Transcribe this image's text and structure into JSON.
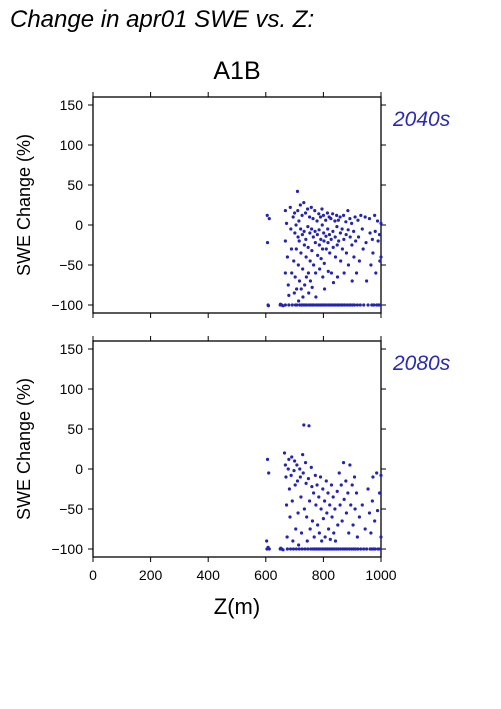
{
  "header": {
    "title": "Change in apr01 SWE vs. Z:"
  },
  "colors": {
    "points": "#2424b0",
    "frame": "#000000",
    "period_label": "#2a2ab4"
  },
  "chart_data": [
    {
      "type": "scatter",
      "title": "A1B",
      "period": "2040s",
      "xlabel": "",
      "ylabel": "SWE Change (%)",
      "xlim": [
        0,
        1000
      ],
      "ylim": [
        -110,
        160
      ],
      "xticks": [],
      "yticks": [
        -100,
        -50,
        0,
        50,
        100,
        150
      ],
      "grid": false,
      "points": [
        [
          605,
          12
        ],
        [
          606,
          -22
        ],
        [
          608,
          -100
        ],
        [
          609,
          -101
        ],
        [
          612,
          8
        ],
        [
          650,
          -100
        ],
        [
          651,
          -99
        ],
        [
          655,
          -100
        ],
        [
          660,
          -101
        ],
        [
          668,
          18
        ],
        [
          668,
          -20
        ],
        [
          668,
          -60
        ],
        [
          668,
          -100
        ],
        [
          672,
          2
        ],
        [
          675,
          -40
        ],
        [
          678,
          -75
        ],
        [
          680,
          -88
        ],
        [
          680,
          -100
        ],
        [
          685,
          22
        ],
        [
          687,
          -5
        ],
        [
          689,
          -30
        ],
        [
          690,
          -60
        ],
        [
          692,
          -100
        ],
        [
          695,
          10
        ],
        [
          697,
          -45
        ],
        [
          699,
          -85
        ],
        [
          700,
          15
        ],
        [
          701,
          -10
        ],
        [
          702,
          -65
        ],
        [
          703,
          -100
        ],
        [
          705,
          0
        ],
        [
          706,
          -30
        ],
        [
          707,
          -80
        ],
        [
          708,
          -100
        ],
        [
          710,
          42
        ],
        [
          711,
          18
        ],
        [
          712,
          -15
        ],
        [
          713,
          -50
        ],
        [
          714,
          -95
        ],
        [
          715,
          5
        ],
        [
          716,
          -20
        ],
        [
          717,
          -70
        ],
        [
          718,
          -100
        ],
        [
          720,
          25
        ],
        [
          721,
          -5
        ],
        [
          722,
          -35
        ],
        [
          723,
          -80
        ],
        [
          724,
          -100
        ],
        [
          726,
          12
        ],
        [
          727,
          -12
        ],
        [
          728,
          -55
        ],
        [
          729,
          -90
        ],
        [
          730,
          -100
        ],
        [
          732,
          28
        ],
        [
          733,
          -8
        ],
        [
          734,
          -25
        ],
        [
          735,
          -75
        ],
        [
          736,
          -100
        ],
        [
          738,
          15
        ],
        [
          739,
          -18
        ],
        [
          740,
          -40
        ],
        [
          741,
          -65
        ],
        [
          742,
          -100
        ],
        [
          745,
          20
        ],
        [
          746,
          -2
        ],
        [
          747,
          -28
        ],
        [
          748,
          -60
        ],
        [
          749,
          -85
        ],
        [
          750,
          -100
        ],
        [
          752,
          10
        ],
        [
          753,
          -10
        ],
        [
          754,
          -45
        ],
        [
          755,
          -70
        ],
        [
          756,
          -100
        ],
        [
          758,
          22
        ],
        [
          759,
          -5
        ],
        [
          760,
          -32
        ],
        [
          761,
          -78
        ],
        [
          762,
          -100
        ],
        [
          764,
          8
        ],
        [
          765,
          -15
        ],
        [
          766,
          -50
        ],
        [
          767,
          -100
        ],
        [
          770,
          18
        ],
        [
          771,
          -8
        ],
        [
          772,
          -22
        ],
        [
          773,
          -60
        ],
        [
          774,
          -90
        ],
        [
          775,
          -100
        ],
        [
          778,
          5
        ],
        [
          779,
          -12
        ],
        [
          780,
          -38
        ],
        [
          781,
          -100
        ],
        [
          784,
          14
        ],
        [
          785,
          -6
        ],
        [
          786,
          -25
        ],
        [
          787,
          -55
        ],
        [
          788,
          -100
        ],
        [
          790,
          10
        ],
        [
          791,
          -18
        ],
        [
          792,
          -42
        ],
        [
          793,
          -100
        ],
        [
          795,
          20
        ],
        [
          796,
          0
        ],
        [
          797,
          -30
        ],
        [
          798,
          -65
        ],
        [
          799,
          -100
        ],
        [
          800,
          12
        ],
        [
          801,
          -10
        ],
        [
          802,
          -20
        ],
        [
          803,
          -48
        ],
        [
          804,
          -80
        ],
        [
          805,
          -100
        ],
        [
          808,
          6
        ],
        [
          809,
          -14
        ],
        [
          810,
          -30
        ],
        [
          811,
          -100
        ],
        [
          814,
          15
        ],
        [
          815,
          -5
        ],
        [
          816,
          -22
        ],
        [
          817,
          -58
        ],
        [
          818,
          -100
        ],
        [
          820,
          10
        ],
        [
          821,
          -12
        ],
        [
          822,
          -35
        ],
        [
          823,
          -100
        ],
        [
          826,
          8
        ],
        [
          827,
          -18
        ],
        [
          828,
          -60
        ],
        [
          830,
          -100
        ],
        [
          832,
          14
        ],
        [
          833,
          -8
        ],
        [
          834,
          -28
        ],
        [
          835,
          -72
        ],
        [
          836,
          -100
        ],
        [
          840,
          5
        ],
        [
          841,
          -15
        ],
        [
          842,
          -40
        ],
        [
          843,
          -100
        ],
        [
          846,
          12
        ],
        [
          847,
          -2
        ],
        [
          848,
          -25
        ],
        [
          849,
          -65
        ],
        [
          850,
          -100
        ],
        [
          852,
          6
        ],
        [
          853,
          -20
        ],
        [
          854,
          -100
        ],
        [
          858,
          10
        ],
        [
          859,
          -10
        ],
        [
          860,
          -45
        ],
        [
          861,
          -100
        ],
        [
          865,
          -5
        ],
        [
          866,
          -30
        ],
        [
          867,
          -100
        ],
        [
          870,
          12
        ],
        [
          871,
          -18
        ],
        [
          872,
          -60
        ],
        [
          874,
          -100
        ],
        [
          878,
          4
        ],
        [
          879,
          -12
        ],
        [
          880,
          -35
        ],
        [
          882,
          -100
        ],
        [
          885,
          18
        ],
        [
          886,
          -6
        ],
        [
          887,
          -50
        ],
        [
          890,
          -100
        ],
        [
          892,
          8
        ],
        [
          893,
          -15
        ],
        [
          895,
          -100
        ],
        [
          898,
          2
        ],
        [
          899,
          -25
        ],
        [
          900,
          -70
        ],
        [
          902,
          -100
        ],
        [
          905,
          -8
        ],
        [
          906,
          -40
        ],
        [
          908,
          -100
        ],
        [
          910,
          10
        ],
        [
          912,
          -20
        ],
        [
          915,
          -60
        ],
        [
          918,
          -100
        ],
        [
          920,
          6
        ],
        [
          922,
          -15
        ],
        [
          925,
          -45
        ],
        [
          928,
          -100
        ],
        [
          930,
          12
        ],
        [
          935,
          -5
        ],
        [
          938,
          -30
        ],
        [
          940,
          -100
        ],
        [
          945,
          10
        ],
        [
          948,
          -22
        ],
        [
          950,
          -70
        ],
        [
          955,
          -100
        ],
        [
          960,
          8
        ],
        [
          962,
          -10
        ],
        [
          965,
          -50
        ],
        [
          968,
          -100
        ],
        [
          970,
          -18
        ],
        [
          972,
          -35
        ],
        [
          975,
          -100
        ],
        [
          978,
          12
        ],
        [
          980,
          -8
        ],
        [
          982,
          -60
        ],
        [
          985,
          -100
        ],
        [
          988,
          5
        ],
        [
          990,
          -20
        ],
        [
          992,
          -100
        ],
        [
          995,
          -12
        ],
        [
          996,
          -45
        ],
        [
          998,
          -100
        ],
        [
          1000,
          2
        ],
        [
          1000,
          -40
        ]
      ]
    },
    {
      "type": "scatter",
      "title": "",
      "period": "2080s",
      "xlabel": "Z(m)",
      "ylabel": "SWE Change (%)",
      "xlim": [
        0,
        1000
      ],
      "ylim": [
        -110,
        160
      ],
      "xticks": [
        0,
        200,
        400,
        600,
        800,
        1000
      ],
      "yticks": [
        -100,
        -50,
        0,
        50,
        100,
        150
      ],
      "grid": false,
      "points": [
        [
          603,
          -90
        ],
        [
          604,
          -100
        ],
        [
          606,
          12
        ],
        [
          608,
          -98
        ],
        [
          610,
          -5
        ],
        [
          612,
          -100
        ],
        [
          650,
          -100
        ],
        [
          652,
          -99
        ],
        [
          655,
          -100
        ],
        [
          660,
          -101
        ],
        [
          665,
          20
        ],
        [
          668,
          5
        ],
        [
          670,
          -10
        ],
        [
          672,
          -45
        ],
        [
          674,
          -85
        ],
        [
          675,
          -100
        ],
        [
          678,
          0
        ],
        [
          680,
          12
        ],
        [
          682,
          -25
        ],
        [
          684,
          -60
        ],
        [
          686,
          -100
        ],
        [
          688,
          -8
        ],
        [
          690,
          15
        ],
        [
          692,
          -40
        ],
        [
          694,
          -90
        ],
        [
          696,
          -100
        ],
        [
          698,
          -2
        ],
        [
          700,
          10
        ],
        [
          702,
          -20
        ],
        [
          704,
          -75
        ],
        [
          706,
          -100
        ],
        [
          708,
          5
        ],
        [
          710,
          -15
        ],
        [
          712,
          -55
        ],
        [
          714,
          -95
        ],
        [
          716,
          -100
        ],
        [
          718,
          0
        ],
        [
          720,
          -10
        ],
        [
          722,
          -35
        ],
        [
          724,
          -80
        ],
        [
          726,
          -100
        ],
        [
          728,
          18
        ],
        [
          730,
          -5
        ],
        [
          732,
          55
        ],
        [
          734,
          -50
        ],
        [
          736,
          -100
        ],
        [
          738,
          8
        ],
        [
          740,
          -18
        ],
        [
          742,
          -60
        ],
        [
          744,
          -90
        ],
        [
          746,
          -100
        ],
        [
          748,
          -12
        ],
        [
          750,
          54
        ],
        [
          752,
          -40
        ],
        [
          754,
          -75
        ],
        [
          756,
          -100
        ],
        [
          758,
          2
        ],
        [
          760,
          -22
        ],
        [
          762,
          -65
        ],
        [
          764,
          -100
        ],
        [
          766,
          -30
        ],
        [
          768,
          -85
        ],
        [
          770,
          -100
        ],
        [
          772,
          -8
        ],
        [
          774,
          -45
        ],
        [
          776,
          -100
        ],
        [
          778,
          -20
        ],
        [
          780,
          -70
        ],
        [
          782,
          -100
        ],
        [
          784,
          -35
        ],
        [
          786,
          -80
        ],
        [
          788,
          -100
        ],
        [
          790,
          -10
        ],
        [
          792,
          -50
        ],
        [
          794,
          -90
        ],
        [
          796,
          -100
        ],
        [
          798,
          -25
        ],
        [
          800,
          -62
        ],
        [
          802,
          -100
        ],
        [
          804,
          -40
        ],
        [
          806,
          -85
        ],
        [
          808,
          -100
        ],
        [
          810,
          -15
        ],
        [
          812,
          -55
        ],
        [
          814,
          -100
        ],
        [
          816,
          -30
        ],
        [
          818,
          -75
        ],
        [
          820,
          -100
        ],
        [
          822,
          -45
        ],
        [
          824,
          -88
        ],
        [
          826,
          -100
        ],
        [
          828,
          -20
        ],
        [
          830,
          -60
        ],
        [
          832,
          -100
        ],
        [
          834,
          -35
        ],
        [
          836,
          -80
        ],
        [
          838,
          -100
        ],
        [
          840,
          -50
        ],
        [
          842,
          -90
        ],
        [
          845,
          -100
        ],
        [
          848,
          -28
        ],
        [
          850,
          -70
        ],
        [
          852,
          -100
        ],
        [
          855,
          -5
        ],
        [
          858,
          -45
        ],
        [
          860,
          -100
        ],
        [
          862,
          -20
        ],
        [
          865,
          -65
        ],
        [
          868,
          -100
        ],
        [
          870,
          8
        ],
        [
          872,
          -38
        ],
        [
          875,
          -100
        ],
        [
          878,
          -15
        ],
        [
          880,
          -55
        ],
        [
          882,
          -100
        ],
        [
          885,
          -30
        ],
        [
          888,
          -80
        ],
        [
          890,
          -100
        ],
        [
          892,
          5
        ],
        [
          895,
          -45
        ],
        [
          898,
          -100
        ],
        [
          900,
          -20
        ],
        [
          903,
          -70
        ],
        [
          905,
          -100
        ],
        [
          908,
          -10
        ],
        [
          910,
          -50
        ],
        [
          912,
          -100
        ],
        [
          915,
          -30
        ],
        [
          918,
          -85
        ],
        [
          920,
          -100
        ],
        [
          925,
          -60
        ],
        [
          930,
          -100
        ],
        [
          935,
          -45
        ],
        [
          940,
          -100
        ],
        [
          945,
          -75
        ],
        [
          950,
          -100
        ],
        [
          955,
          -25
        ],
        [
          960,
          -55
        ],
        [
          962,
          -100
        ],
        [
          965,
          -80
        ],
        [
          968,
          -100
        ],
        [
          970,
          -40
        ],
        [
          972,
          -10
        ],
        [
          975,
          -100
        ],
        [
          978,
          -65
        ],
        [
          980,
          -100
        ],
        [
          985,
          -5
        ],
        [
          988,
          -52
        ],
        [
          990,
          -100
        ],
        [
          995,
          -30
        ],
        [
          998,
          -100
        ],
        [
          1000,
          -8
        ],
        [
          1000,
          -85
        ]
      ]
    }
  ]
}
